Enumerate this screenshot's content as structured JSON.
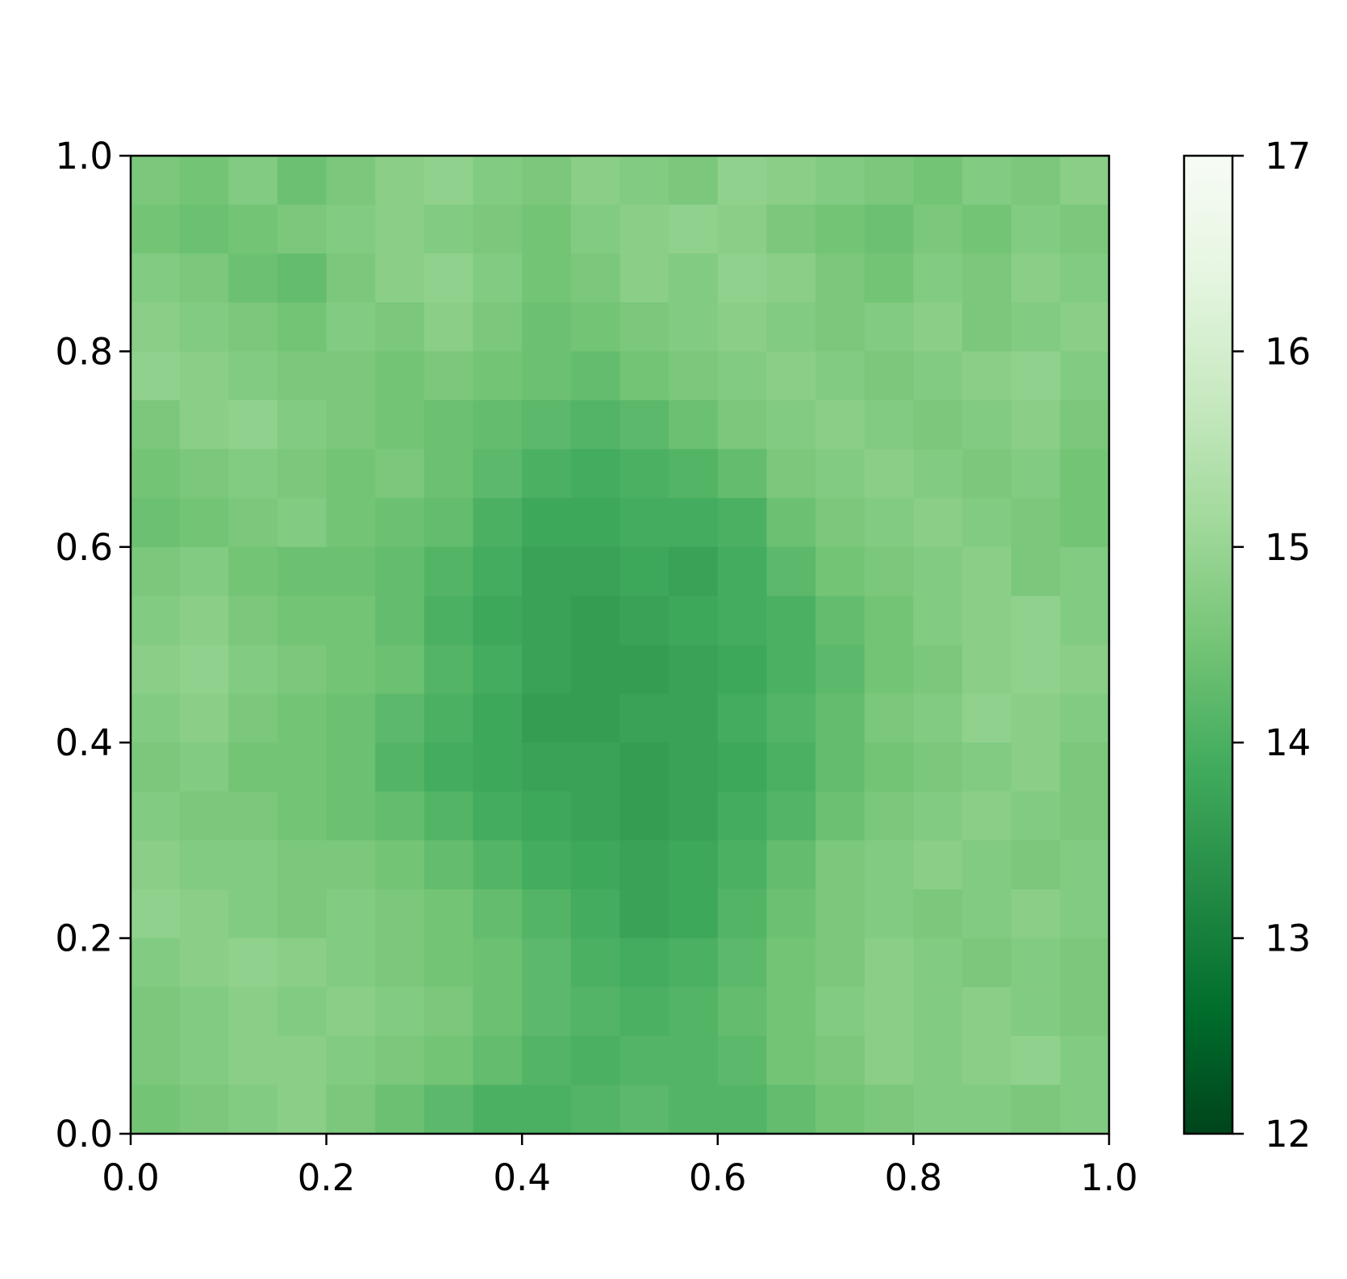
{
  "chart_data": {
    "type": "heatmap",
    "xlim": [
      0,
      1
    ],
    "ylim": [
      0,
      1
    ],
    "xticks": [
      {
        "value": 0,
        "label": "0.0"
      },
      0.2,
      0.4,
      0.6,
      0.8,
      {
        "value": 1,
        "label": "1.0"
      }
    ],
    "yticks": [
      {
        "value": 0,
        "label": "0.0"
      },
      0.2,
      0.4,
      0.6,
      0.8,
      {
        "value": 1,
        "label": "1.0"
      }
    ],
    "clim": [
      12,
      17
    ],
    "cticks": [
      12,
      13,
      14,
      15,
      16,
      17
    ],
    "colormap": [
      "#00441b",
      "#006d2c",
      "#238b45",
      "#41ab5d",
      "#74c476",
      "#a1d99b",
      "#c7e9c0",
      "#e5f5e0",
      "#f7fcf5"
    ],
    "z": [
      [
        14.6,
        14.5,
        14.7,
        14.4,
        14.6,
        14.8,
        14.9,
        14.7,
        14.6,
        14.8,
        14.7,
        14.6,
        14.9,
        14.8,
        14.7,
        14.6,
        14.5,
        14.7,
        14.6,
        14.8
      ],
      [
        14.5,
        14.4,
        14.5,
        14.6,
        14.7,
        14.8,
        14.7,
        14.6,
        14.5,
        14.7,
        14.8,
        14.9,
        14.8,
        14.6,
        14.5,
        14.4,
        14.6,
        14.5,
        14.7,
        14.6
      ],
      [
        14.7,
        14.6,
        14.4,
        14.3,
        14.6,
        14.8,
        14.9,
        14.7,
        14.5,
        14.6,
        14.8,
        14.7,
        14.9,
        14.8,
        14.6,
        14.5,
        14.7,
        14.6,
        14.8,
        14.7
      ],
      [
        14.8,
        14.7,
        14.6,
        14.5,
        14.7,
        14.6,
        14.8,
        14.6,
        14.4,
        14.5,
        14.6,
        14.7,
        14.8,
        14.7,
        14.6,
        14.7,
        14.8,
        14.6,
        14.7,
        14.8
      ],
      [
        14.9,
        14.8,
        14.7,
        14.6,
        14.6,
        14.5,
        14.6,
        14.5,
        14.4,
        14.3,
        14.5,
        14.6,
        14.7,
        14.8,
        14.7,
        14.6,
        14.7,
        14.8,
        14.9,
        14.7
      ],
      [
        14.6,
        14.8,
        14.9,
        14.7,
        14.6,
        14.5,
        14.4,
        14.3,
        14.2,
        14.1,
        14.2,
        14.4,
        14.6,
        14.7,
        14.8,
        14.7,
        14.6,
        14.7,
        14.8,
        14.6
      ],
      [
        14.5,
        14.6,
        14.7,
        14.6,
        14.5,
        14.6,
        14.4,
        14.2,
        14.0,
        13.9,
        14.0,
        14.1,
        14.3,
        14.6,
        14.7,
        14.8,
        14.7,
        14.6,
        14.7,
        14.5
      ],
      [
        14.4,
        14.5,
        14.6,
        14.7,
        14.5,
        14.4,
        14.3,
        14.0,
        13.8,
        13.8,
        13.9,
        13.9,
        14.0,
        14.4,
        14.6,
        14.7,
        14.8,
        14.7,
        14.6,
        14.5
      ],
      [
        14.6,
        14.7,
        14.5,
        14.4,
        14.4,
        14.3,
        14.1,
        13.9,
        13.7,
        13.7,
        13.8,
        13.7,
        13.9,
        14.2,
        14.5,
        14.6,
        14.7,
        14.8,
        14.6,
        14.7
      ],
      [
        14.7,
        14.8,
        14.6,
        14.5,
        14.5,
        14.3,
        14.0,
        13.8,
        13.7,
        13.6,
        13.7,
        13.8,
        13.9,
        14.0,
        14.3,
        14.5,
        14.7,
        14.8,
        14.9,
        14.7
      ],
      [
        14.8,
        14.9,
        14.7,
        14.6,
        14.5,
        14.4,
        14.1,
        13.9,
        13.7,
        13.6,
        13.6,
        13.7,
        13.8,
        14.0,
        14.2,
        14.5,
        14.6,
        14.8,
        14.9,
        14.8
      ],
      [
        14.7,
        14.8,
        14.6,
        14.5,
        14.4,
        14.2,
        14.0,
        13.8,
        13.6,
        13.6,
        13.7,
        13.7,
        13.9,
        14.1,
        14.3,
        14.6,
        14.7,
        14.9,
        14.8,
        14.7
      ],
      [
        14.6,
        14.7,
        14.5,
        14.5,
        14.4,
        14.1,
        13.9,
        13.8,
        13.7,
        13.7,
        13.6,
        13.7,
        13.8,
        14.0,
        14.3,
        14.5,
        14.6,
        14.7,
        14.8,
        14.6
      ],
      [
        14.7,
        14.6,
        14.6,
        14.5,
        14.4,
        14.3,
        14.1,
        13.9,
        13.8,
        13.7,
        13.6,
        13.7,
        13.9,
        14.1,
        14.4,
        14.6,
        14.7,
        14.8,
        14.7,
        14.6
      ],
      [
        14.8,
        14.7,
        14.7,
        14.6,
        14.6,
        14.5,
        14.3,
        14.1,
        13.9,
        13.8,
        13.7,
        13.8,
        14.0,
        14.3,
        14.6,
        14.7,
        14.8,
        14.7,
        14.6,
        14.7
      ],
      [
        14.9,
        14.8,
        14.7,
        14.6,
        14.7,
        14.6,
        14.5,
        14.3,
        14.1,
        13.9,
        13.7,
        13.8,
        14.1,
        14.4,
        14.6,
        14.7,
        14.6,
        14.7,
        14.8,
        14.7
      ],
      [
        14.7,
        14.8,
        14.9,
        14.8,
        14.7,
        14.6,
        14.5,
        14.4,
        14.2,
        14.0,
        13.9,
        14.0,
        14.2,
        14.5,
        14.6,
        14.8,
        14.7,
        14.6,
        14.7,
        14.6
      ],
      [
        14.6,
        14.7,
        14.8,
        14.7,
        14.8,
        14.7,
        14.6,
        14.4,
        14.2,
        14.1,
        14.0,
        14.1,
        14.3,
        14.5,
        14.7,
        14.8,
        14.7,
        14.8,
        14.7,
        14.6
      ],
      [
        14.6,
        14.7,
        14.8,
        14.8,
        14.7,
        14.6,
        14.5,
        14.3,
        14.1,
        14.0,
        14.1,
        14.1,
        14.2,
        14.5,
        14.6,
        14.8,
        14.7,
        14.8,
        14.9,
        14.7
      ],
      [
        14.5,
        14.6,
        14.7,
        14.8,
        14.6,
        14.4,
        14.2,
        14.0,
        14.0,
        14.1,
        14.2,
        14.1,
        14.1,
        14.3,
        14.5,
        14.6,
        14.7,
        14.7,
        14.6,
        14.7
      ]
    ]
  }
}
